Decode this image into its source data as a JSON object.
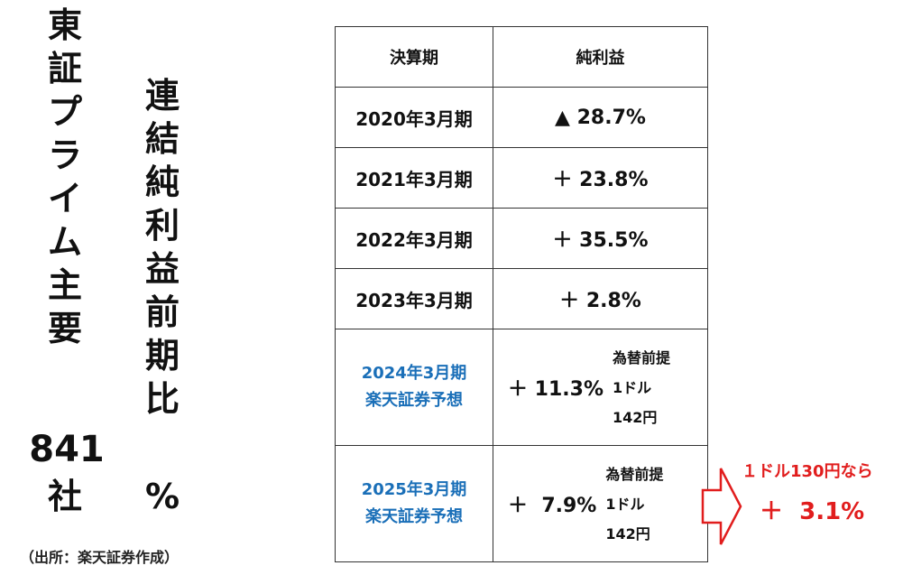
{
  "left_title": {
    "col1_chars": [
      "東",
      "証",
      "プ",
      "ラ",
      "イ",
      "ム",
      "主",
      "要"
    ],
    "count": "841",
    "count_suffix": "社",
    "col2_chars": [
      "連",
      "結",
      "純",
      "利",
      "益",
      "前",
      "期",
      "比"
    ],
    "percent_sign": "%"
  },
  "source": "（出所：楽天証券作成）",
  "table": {
    "headers": {
      "period": "決算期",
      "profit": "純利益"
    },
    "rows": [
      {
        "period": "2020年3月期",
        "value": "▲ 28.7%"
      },
      {
        "period": "2021年3月期",
        "value": "＋ 23.8%"
      },
      {
        "period": "2022年3月期",
        "value": "＋ 35.5%"
      },
      {
        "period": "2023年3月期",
        "value": "＋  2.8%"
      }
    ],
    "forecast_rows": [
      {
        "period": "2024年3月期",
        "note": "楽天証券予想",
        "value": "＋ 11.3%",
        "fx_label": "為替前提",
        "fx_rate": "1ドル",
        "fx_yen": "142円"
      },
      {
        "period": "2025年3月期",
        "note": "楽天証券予想",
        "value": "＋  7.9%",
        "fx_label": "為替前提",
        "fx_rate": "1ドル",
        "fx_yen": "142円"
      }
    ]
  },
  "callout": {
    "condition": "１ドル130円なら",
    "value": "＋  3.1%"
  },
  "colors": {
    "forecast_blue": "#1a6fb8",
    "callout_red": "#e11d1d"
  }
}
